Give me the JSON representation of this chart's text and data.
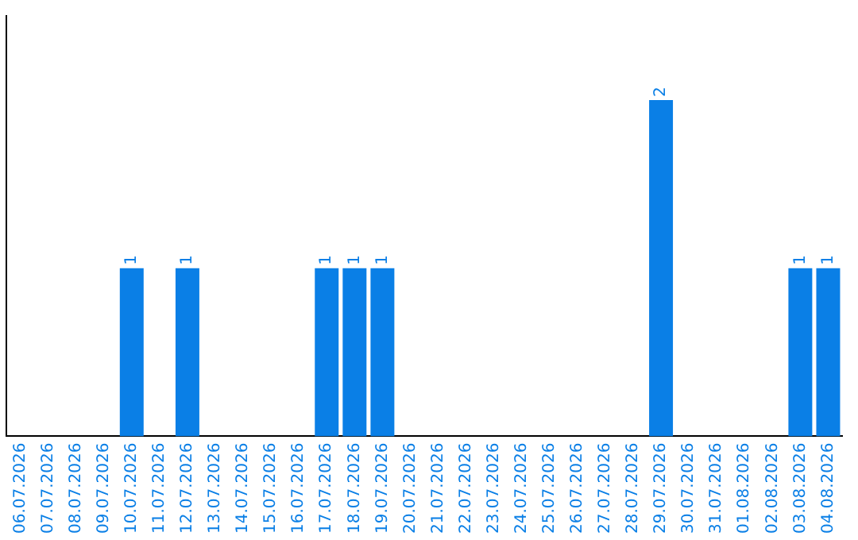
{
  "chart_data": {
    "type": "bar",
    "categories": [
      "06.07.2026",
      "07.07.2026",
      "08.07.2026",
      "09.07.2026",
      "10.07.2026",
      "11.07.2026",
      "12.07.2026",
      "13.07.2026",
      "14.07.2026",
      "15.07.2026",
      "16.07.2026",
      "17.07.2026",
      "18.07.2026",
      "19.07.2026",
      "20.07.2026",
      "21.07.2026",
      "22.07.2026",
      "23.07.2026",
      "24.07.2026",
      "25.07.2026",
      "26.07.2026",
      "27.07.2026",
      "28.07.2026",
      "29.07.2026",
      "30.07.2026",
      "31.07.2026",
      "01.08.2026",
      "02.08.2026",
      "03.08.2026",
      "04.08.2026"
    ],
    "values": [
      0,
      0,
      0,
      0,
      1,
      0,
      1,
      0,
      0,
      0,
      0,
      1,
      1,
      1,
      0,
      0,
      0,
      0,
      0,
      0,
      0,
      0,
      0,
      2,
      0,
      0,
      0,
      0,
      1,
      1
    ],
    "value_labels": [
      null,
      null,
      null,
      null,
      "1",
      null,
      "1",
      null,
      null,
      null,
      null,
      "1",
      "1",
      "1",
      null,
      null,
      null,
      null,
      null,
      null,
      null,
      null,
      null,
      "2",
      null,
      null,
      null,
      null,
      "1",
      "1"
    ],
    "color": "#0a7fe6",
    "tick_labels": "x",
    "grid": false,
    "legend": false
  }
}
